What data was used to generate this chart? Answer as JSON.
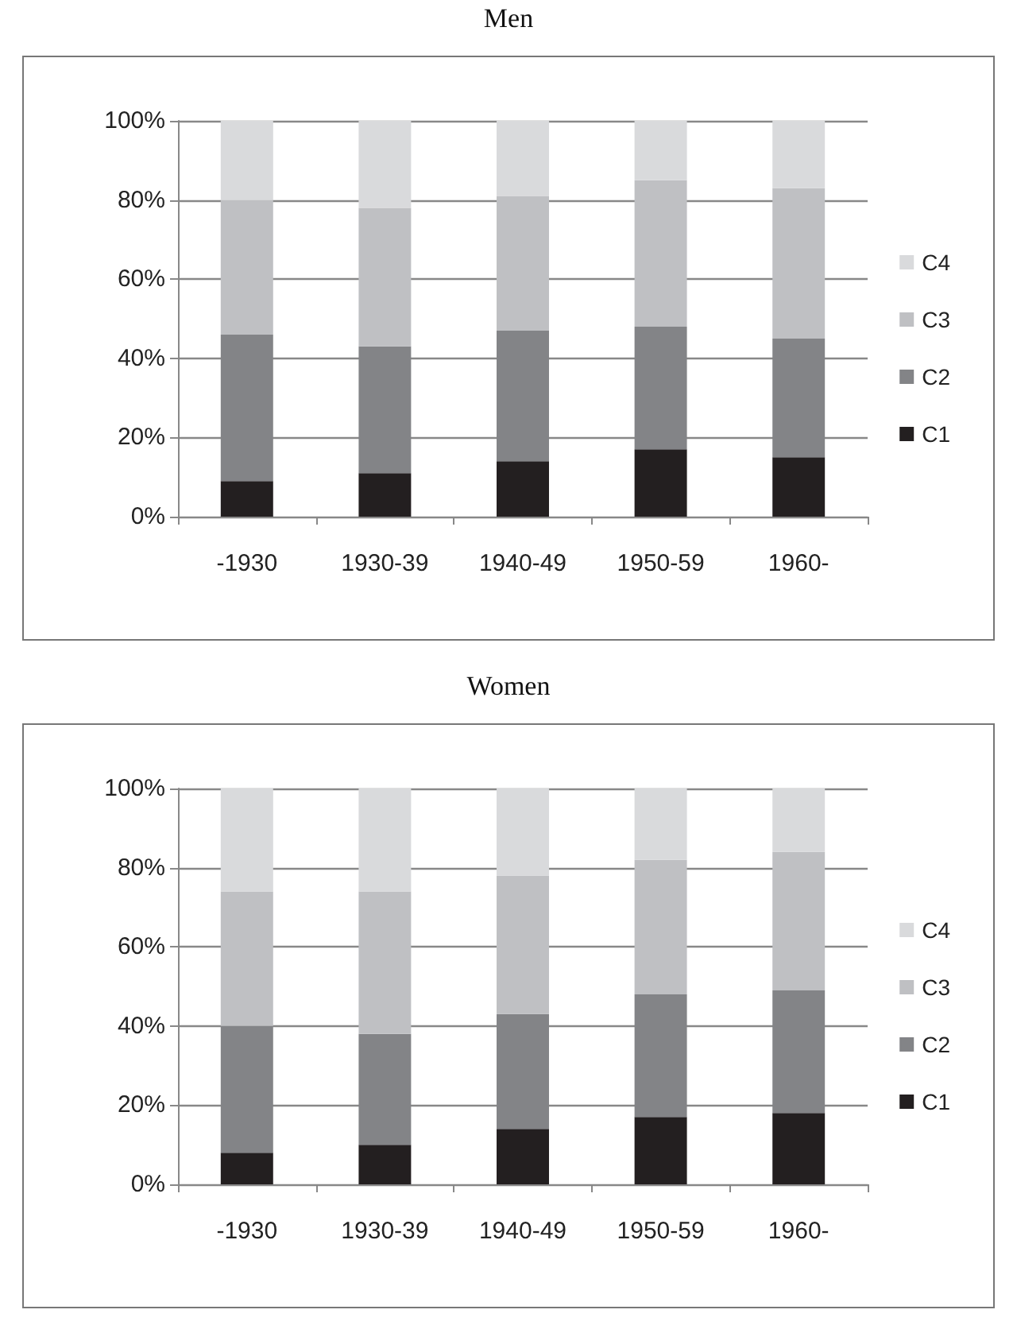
{
  "chart_data": [
    {
      "type": "bar",
      "title": "Men",
      "categories": [
        "-1930",
        "1930-39",
        "1940-49",
        "1950-59",
        "1960-"
      ],
      "stacked": true,
      "series": [
        {
          "name": "C1",
          "color": "#231f20",
          "values": [
            9,
            11,
            14,
            17,
            15
          ]
        },
        {
          "name": "C2",
          "color": "#838487",
          "values": [
            37,
            32,
            33,
            31,
            30
          ]
        },
        {
          "name": "C3",
          "color": "#bfc0c3",
          "values": [
            34,
            35,
            34,
            37,
            38
          ]
        },
        {
          "name": "C4",
          "color": "#d9dadc",
          "values": [
            20,
            22,
            19,
            15,
            17
          ]
        }
      ],
      "ylim": [
        0,
        100
      ],
      "yticks": [
        {
          "value": 0,
          "label": "0%"
        },
        {
          "value": 20,
          "label": "20%"
        },
        {
          "value": 40,
          "label": "40%"
        },
        {
          "value": 60,
          "label": "60%"
        },
        {
          "value": 80,
          "label": "80%"
        },
        {
          "value": 100,
          "label": "100%"
        }
      ],
      "grid": "y",
      "legend": "right"
    },
    {
      "type": "bar",
      "title": "Women",
      "categories": [
        "-1930",
        "1930-39",
        "1940-49",
        "1950-59",
        "1960-"
      ],
      "stacked": true,
      "series": [
        {
          "name": "C1",
          "color": "#231f20",
          "values": [
            8,
            10,
            14,
            17,
            18
          ]
        },
        {
          "name": "C2",
          "color": "#838487",
          "values": [
            32,
            28,
            29,
            31,
            31
          ]
        },
        {
          "name": "C3",
          "color": "#bfc0c3",
          "values": [
            34,
            36,
            35,
            34,
            35
          ]
        },
        {
          "name": "C4",
          "color": "#d9dadc",
          "values": [
            26,
            26,
            22,
            18,
            16
          ]
        }
      ],
      "ylim": [
        0,
        100
      ],
      "yticks": [
        {
          "value": 0,
          "label": "0%"
        },
        {
          "value": 20,
          "label": "20%"
        },
        {
          "value": 40,
          "label": "40%"
        },
        {
          "value": 60,
          "label": "60%"
        },
        {
          "value": 80,
          "label": "80%"
        },
        {
          "value": 100,
          "label": "100%"
        }
      ],
      "grid": "y",
      "legend": "right"
    }
  ]
}
